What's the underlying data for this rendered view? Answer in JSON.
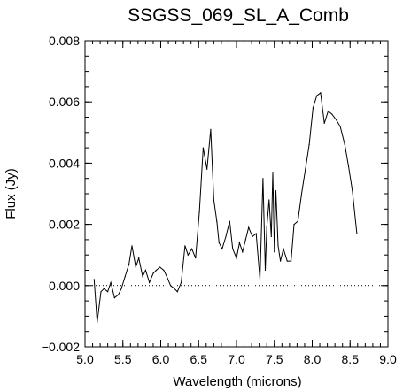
{
  "chart_data": {
    "type": "line",
    "title": "SSGSS_069_SL_A_Comb",
    "xlabel": "Wavelength (microns)",
    "ylabel": "Flux (Jy)",
    "xlim": [
      5.0,
      9.0
    ],
    "ylim": [
      -0.002,
      0.008
    ],
    "x_ticks": [
      5.0,
      5.5,
      6.0,
      6.5,
      7.0,
      7.5,
      8.0,
      8.5,
      9.0
    ],
    "x_tick_labels": [
      "5.0",
      "5.5",
      "6.0",
      "6.5",
      "7.0",
      "7.5",
      "8.0",
      "8.5",
      "9.0"
    ],
    "y_ticks": [
      -0.002,
      0.0,
      0.002,
      0.004,
      0.006,
      0.008
    ],
    "y_tick_labels": [
      "−0.002",
      "0.000",
      "0.002",
      "0.004",
      "0.006",
      "0.008"
    ],
    "zero_line": {
      "y": 0.0,
      "style": "dotted"
    },
    "grid": false,
    "line_color": "#000000",
    "series": [
      {
        "x": [
          5.12,
          5.16,
          5.21,
          5.25,
          5.3,
          5.34,
          5.39,
          5.44,
          5.48,
          5.53,
          5.58,
          5.62,
          5.67,
          5.71,
          5.76,
          5.8,
          5.85,
          5.9,
          5.94,
          5.99,
          6.04,
          6.08,
          6.13,
          6.18,
          6.22,
          6.27,
          6.32,
          6.36,
          6.41,
          6.46,
          6.51,
          6.56,
          6.61,
          6.66,
          6.7,
          6.74,
          6.77,
          6.81,
          6.86,
          6.91,
          6.95,
          7.0,
          7.04,
          7.08,
          7.12,
          7.16,
          7.21,
          7.26,
          7.31,
          7.35,
          7.38,
          7.4,
          7.43,
          7.46,
          7.48,
          7.5,
          7.52,
          7.55,
          7.58,
          7.62,
          7.67,
          7.72,
          7.76,
          7.81,
          7.86,
          7.91,
          7.96,
          8.01,
          8.06,
          8.11,
          8.16,
          8.21,
          8.26,
          8.32,
          8.37,
          8.43,
          8.48,
          8.53,
          8.59
        ],
        "y": [
          0.0002,
          -0.0012,
          -0.0002,
          -0.0001,
          -0.0002,
          0.0001,
          -0.0004,
          -0.0003,
          -0.0001,
          0.0003,
          0.0007,
          0.0013,
          0.0006,
          0.0009,
          0.0003,
          0.0005,
          0.0001,
          0.0004,
          0.0005,
          0.0006,
          0.0005,
          0.0003,
          0.0,
          -0.0001,
          -0.0002,
          0.0001,
          0.0013,
          0.001,
          0.0012,
          0.0009,
          0.0024,
          0.0045,
          0.0038,
          0.0051,
          0.0028,
          0.0021,
          0.0014,
          0.0012,
          0.0016,
          0.0021,
          0.0012,
          0.0009,
          0.0014,
          0.0011,
          0.0015,
          0.0019,
          0.0016,
          0.0017,
          0.0002,
          0.0035,
          0.0005,
          0.0019,
          0.0028,
          0.0016,
          0.0037,
          0.0011,
          0.0031,
          0.0013,
          0.0008,
          0.0012,
          0.0008,
          0.0008,
          0.002,
          0.0021,
          0.003,
          0.0038,
          0.0046,
          0.0058,
          0.0062,
          0.0063,
          0.0053,
          0.0057,
          0.0056,
          0.0054,
          0.0052,
          0.0046,
          0.0039,
          0.0031,
          0.0017
        ]
      }
    ]
  }
}
